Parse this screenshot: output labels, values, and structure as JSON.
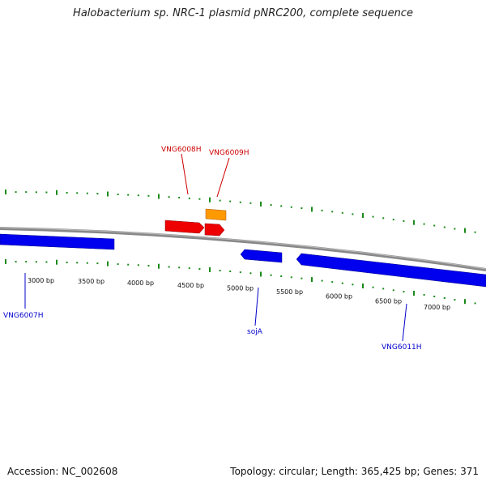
{
  "title": "Halobacterium sp. NRC-1 plasmid pNRC200, complete sequence",
  "footer": {
    "accession": "Accession: NC_002608",
    "summary": "Topology: circular; Length: 365,425 bp; Genes: 371"
  },
  "colors": {
    "forward_gene": "#ff0000",
    "reverse_gene": "#0000ff",
    "rna_or_other": "#ff9900",
    "backbone": "#888888",
    "ticks": "#1a8a1a",
    "forward_label": "#cc0000",
    "reverse_label": "#0000cc"
  },
  "scale_labels": [
    "3000 bp",
    "3500 bp",
    "4000 bp",
    "4500 bp",
    "5000 bp",
    "5500 bp",
    "6000 bp",
    "6500 bp",
    "7000 bp"
  ],
  "genes": [
    {
      "name": "VNG6007H",
      "strand": "reverse"
    },
    {
      "name": "VNG6008H",
      "strand": "forward"
    },
    {
      "name": "VNG6009H",
      "strand": "forward"
    },
    {
      "name": "sojA",
      "strand": "reverse"
    },
    {
      "name": "VNG6011H",
      "strand": "reverse"
    }
  ]
}
